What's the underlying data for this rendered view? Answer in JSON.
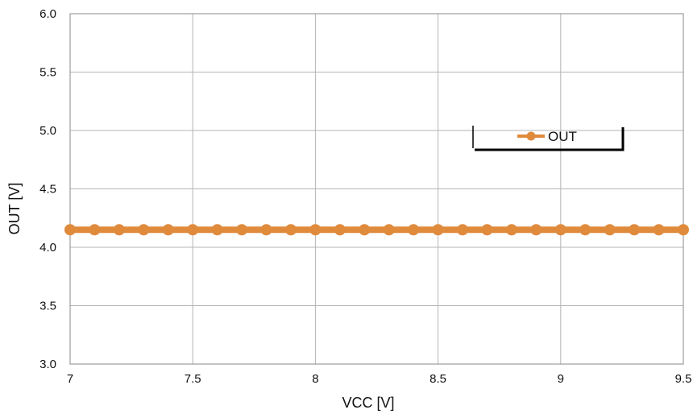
{
  "chart_data": {
    "type": "line",
    "title": "",
    "xlabel": "VCC [V]",
    "ylabel": "OUT [V]",
    "xlim": [
      7,
      9.5
    ],
    "ylim": [
      3.0,
      6.0
    ],
    "x_ticks": [
      "7",
      "7.5",
      "8",
      "8.5",
      "9",
      "9.5"
    ],
    "x_tick_values": [
      7,
      7.5,
      8,
      8.5,
      9,
      9.5
    ],
    "y_ticks": [
      "3.0",
      "3.5",
      "4.0",
      "4.5",
      "5.0",
      "5.5",
      "6.0"
    ],
    "y_tick_values": [
      3.0,
      3.5,
      4.0,
      4.5,
      5.0,
      5.5,
      6.0
    ],
    "grid": true,
    "legend": {
      "position": "top-right"
    },
    "series": [
      {
        "name": "OUT",
        "color": "#e08a3c",
        "marker": "circle",
        "x": [
          7.0,
          7.1,
          7.2,
          7.3,
          7.4,
          7.5,
          7.6,
          7.7,
          7.8,
          7.9,
          8.0,
          8.1,
          8.2,
          8.3,
          8.4,
          8.5,
          8.6,
          8.7,
          8.8,
          8.9,
          9.0,
          9.1,
          9.2,
          9.3,
          9.4,
          9.5
        ],
        "y": [
          4.15,
          4.15,
          4.15,
          4.15,
          4.15,
          4.15,
          4.15,
          4.15,
          4.15,
          4.15,
          4.15,
          4.15,
          4.15,
          4.15,
          4.15,
          4.15,
          4.15,
          4.15,
          4.15,
          4.15,
          4.15,
          4.15,
          4.15,
          4.15,
          4.15,
          4.15
        ]
      }
    ]
  }
}
